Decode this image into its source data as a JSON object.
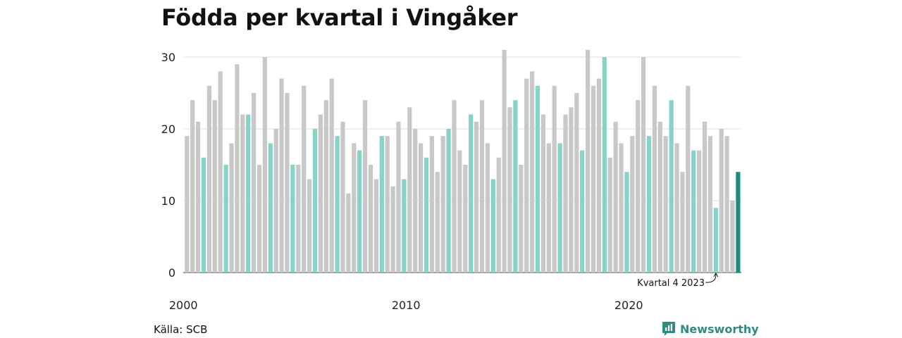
{
  "title": "Födda per kvartal i Vingåker",
  "source": "Källa: SCB",
  "brand": "Newsworthy",
  "colors": {
    "default": "#c8c8c8",
    "quarter4": "#86d3c9",
    "highlight": "#1c8c7e",
    "grid": "#dcdcdc",
    "brand": "#2f8c80"
  },
  "chart_data": {
    "type": "bar",
    "title": "Födda per kvartal i Vingåker",
    "xlabel": "",
    "ylabel": "",
    "ylim": [
      0,
      31
    ],
    "yticks": [
      0,
      10,
      20,
      30
    ],
    "xticks": [
      {
        "label": "2000",
        "year": 2000
      },
      {
        "label": "2010",
        "year": 2010
      },
      {
        "label": "2020",
        "year": 2020
      }
    ],
    "start_year": 2000,
    "start_quarter": 1,
    "values": [
      19,
      24,
      21,
      16,
      26,
      24,
      28,
      15,
      18,
      29,
      22,
      22,
      25,
      15,
      30,
      18,
      20,
      27,
      25,
      15,
      15,
      26,
      13,
      20,
      22,
      24,
      27,
      19,
      21,
      11,
      18,
      17,
      24,
      15,
      13,
      19,
      19,
      12,
      21,
      13,
      23,
      20,
      18,
      16,
      19,
      14,
      19,
      20,
      24,
      17,
      15,
      22,
      21,
      24,
      18,
      13,
      16,
      31,
      23,
      24,
      15,
      27,
      28,
      26,
      22,
      18,
      26,
      18,
      22,
      23,
      25,
      17,
      31,
      26,
      27,
      30,
      16,
      21,
      18,
      14,
      19,
      24,
      30,
      19,
      26,
      21,
      19,
      24,
      18,
      14,
      26,
      17,
      17,
      21,
      19,
      9,
      20,
      19,
      10,
      14
    ],
    "annotation": "Kvartal 4 2023",
    "grid": true,
    "legend": "none"
  }
}
